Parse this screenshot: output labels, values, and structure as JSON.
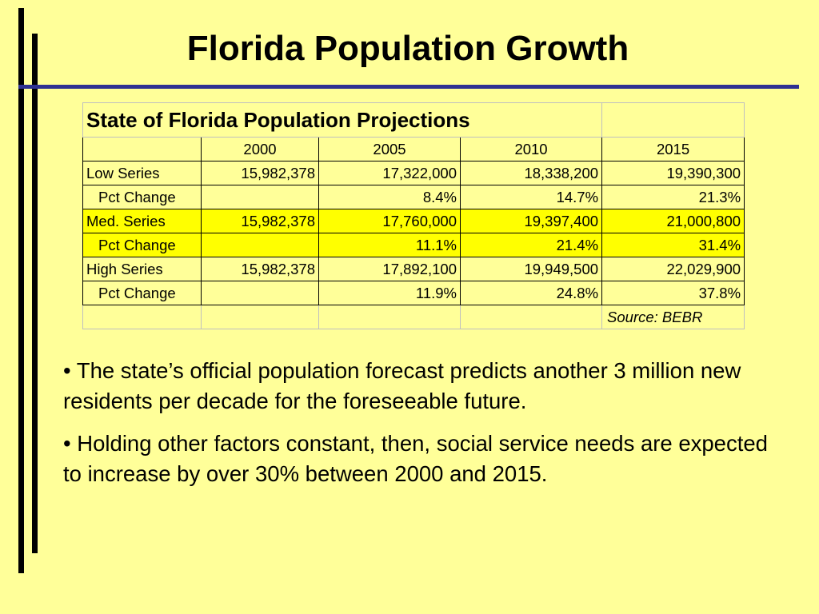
{
  "slide": {
    "title": "Florida Population Growth"
  },
  "table": {
    "title": "State of Florida Population Projections",
    "years": [
      "2000",
      "2005",
      "2010",
      "2015"
    ],
    "rows": [
      {
        "label": "Low Series",
        "values": [
          "15,982,378",
          "17,322,000",
          "18,338,200",
          "19,390,300"
        ]
      },
      {
        "label": "Pct Change",
        "values": [
          "",
          "8.4%",
          "14.7%",
          "21.3%"
        ]
      },
      {
        "label": "Med. Series",
        "values": [
          "15,982,378",
          "17,760,000",
          "19,397,400",
          "21,000,800"
        ]
      },
      {
        "label": "Pct Change",
        "values": [
          "",
          "11.1%",
          "21.4%",
          "31.4%"
        ]
      },
      {
        "label": "High Series",
        "values": [
          "15,982,378",
          "17,892,100",
          "19,949,500",
          "22,029,900"
        ]
      },
      {
        "label": "Pct Change",
        "values": [
          "",
          "11.9%",
          "24.8%",
          "37.8%"
        ]
      }
    ],
    "source": "Source: BEBR"
  },
  "bullets": [
    "• The state’s official population forecast predicts another 3 million new residents per decade for the foreseeable future.",
    "• Holding other factors constant, then, social service needs are expected to increase by over 30% between 2000 and 2015."
  ],
  "colors": {
    "background": "#ffff99",
    "highlight": "#ffff00",
    "rule": "#2e3192"
  }
}
